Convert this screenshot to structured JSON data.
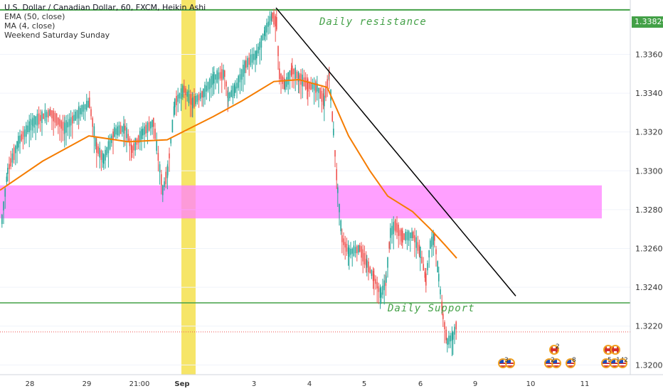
{
  "header": {
    "title": "U.S. Dollar / Canadian Dollar, 60, FXCM, Heikin Ashi",
    "indicators": [
      "EMA (50, close)",
      "MA (4, close)",
      "Weekend Saturday Sunday"
    ]
  },
  "annotations": {
    "resistance_label": "Daily resistance",
    "support_label": "Daily Support"
  },
  "price_tag": "1.33829",
  "colors": {
    "up": "#26a69a",
    "down": "#ef5350",
    "ema": "#f57c00",
    "level_line": "#43a047",
    "zone": "#ff80ff",
    "weekend": "#f4e04d",
    "trendline": "#000000"
  },
  "chart_data": {
    "type": "candlestick",
    "symbol": "USDCAD",
    "timeframe": "60",
    "y_axis_ticks": [
      1.32,
      1.322,
      1.324,
      1.326,
      1.328,
      1.33,
      1.332,
      1.334,
      1.336
    ],
    "y_axis_labels": [
      "1.32000",
      "1.32200",
      "1.32400",
      "1.32600",
      "1.32800",
      "1.33000",
      "1.33200",
      "1.33400",
      "1.33600"
    ],
    "x_axis_labels": [
      "28",
      "29",
      "21:00",
      "Sep",
      "3",
      "4",
      "5",
      "6",
      "9",
      "10",
      "11"
    ],
    "ylim": [
      1.3195,
      1.3388
    ],
    "levels": {
      "daily_resistance": 1.33829,
      "daily_support": 1.3232,
      "current_price_dotted": 1.3217
    },
    "zone": {
      "from": 1.32755,
      "to": 1.32925
    },
    "ema50_points": [
      [
        0,
        1.329
      ],
      [
        60,
        1.3305
      ],
      [
        125,
        1.3318
      ],
      [
        180,
        1.3315
      ],
      [
        235,
        1.3316
      ],
      [
        300,
        1.3328
      ],
      [
        340,
        1.3336
      ],
      [
        385,
        1.3346
      ],
      [
        420,
        1.3347
      ],
      [
        460,
        1.3343
      ],
      [
        490,
        1.3318
      ],
      [
        520,
        1.33
      ],
      [
        545,
        1.3287
      ],
      [
        580,
        1.3279
      ],
      [
        605,
        1.327
      ],
      [
        625,
        1.3262
      ],
      [
        642,
        1.3255
      ]
    ],
    "trendline": {
      "start": [
        388,
        1.3384
      ],
      "end": [
        725,
        1.32355
      ]
    },
    "price_path": [
      [
        2,
        1.3275
      ],
      [
        10,
        1.33
      ],
      [
        25,
        1.3315
      ],
      [
        45,
        1.3325
      ],
      [
        70,
        1.333
      ],
      [
        90,
        1.3322
      ],
      [
        110,
        1.333
      ],
      [
        125,
        1.3335
      ],
      [
        135,
        1.3312
      ],
      [
        145,
        1.3306
      ],
      [
        160,
        1.332
      ],
      [
        175,
        1.3322
      ],
      [
        185,
        1.3311
      ],
      [
        200,
        1.332
      ],
      [
        215,
        1.3325
      ],
      [
        228,
        1.329
      ],
      [
        235,
        1.33
      ],
      [
        245,
        1.3335
      ],
      [
        258,
        1.3342
      ],
      [
        270,
        1.3335
      ],
      [
        285,
        1.334
      ],
      [
        300,
        1.3348
      ],
      [
        315,
        1.335
      ],
      [
        320,
        1.3338
      ],
      [
        330,
        1.3342
      ],
      [
        345,
        1.3355
      ],
      [
        360,
        1.336
      ],
      [
        372,
        1.3372
      ],
      [
        382,
        1.338
      ],
      [
        388,
        1.3376
      ],
      [
        392,
        1.335
      ],
      [
        400,
        1.3344
      ],
      [
        410,
        1.3352
      ],
      [
        420,
        1.3348
      ],
      [
        432,
        1.3344
      ],
      [
        445,
        1.3343
      ],
      [
        455,
        1.3336
      ],
      [
        462,
        1.335
      ],
      [
        468,
        1.332
      ],
      [
        474,
        1.329
      ],
      [
        480,
        1.3265
      ],
      [
        490,
        1.3258
      ],
      [
        505,
        1.326
      ],
      [
        515,
        1.3252
      ],
      [
        525,
        1.3245
      ],
      [
        535,
        1.3236
      ],
      [
        542,
        1.3244
      ],
      [
        548,
        1.3268
      ],
      [
        555,
        1.3272
      ],
      [
        565,
        1.3266
      ],
      [
        580,
        1.3267
      ],
      [
        590,
        1.3258
      ],
      [
        598,
        1.3244
      ],
      [
        604,
        1.3262
      ],
      [
        610,
        1.3266
      ],
      [
        616,
        1.3245
      ],
      [
        622,
        1.3225
      ],
      [
        628,
        1.3212
      ],
      [
        636,
        1.3215
      ],
      [
        641,
        1.3221
      ]
    ],
    "events": [
      {
        "count": "3",
        "flags": [
          "us",
          "us"
        ]
      },
      {
        "count": "2",
        "flags": [
          "ca"
        ]
      },
      {
        "count": "2",
        "flags": [
          "us",
          "us"
        ]
      },
      {
        "count": "8",
        "flags": [
          "us"
        ]
      },
      {
        "count": "",
        "flags": [
          "ca",
          "ca"
        ]
      },
      {
        "count": "5",
        "flags": [
          "us"
        ]
      },
      {
        "count": "14",
        "flags": [
          "us"
        ]
      },
      {
        "count": "2",
        "flags": [
          "us"
        ]
      }
    ]
  }
}
